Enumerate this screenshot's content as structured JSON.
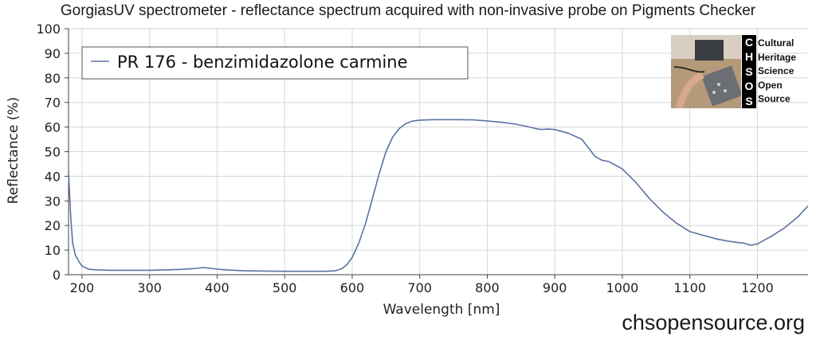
{
  "chart_data": {
    "type": "line",
    "title": "GorgiasUV spectrometer - reflectance spectrum acquired with non-invasive probe on Pigments Checker",
    "xlabel": "Wavelength [nm]",
    "ylabel": "Reflectance (%)",
    "xlim": [
      180,
      1275
    ],
    "ylim": [
      0,
      100
    ],
    "xticks": [
      200,
      300,
      400,
      500,
      600,
      700,
      800,
      900,
      1000,
      1100,
      1200
    ],
    "yticks": [
      0,
      10,
      20,
      30,
      40,
      50,
      60,
      70,
      80,
      90,
      100
    ],
    "grid": true,
    "legend_position": "top-left",
    "series": [
      {
        "name": "PR 176 - benzimidazolone carmine",
        "color": "#5a73a0",
        "x": [
          180,
          183,
          186,
          190,
          195,
          200,
          210,
          220,
          240,
          270,
          300,
          330,
          350,
          370,
          380,
          390,
          410,
          440,
          470,
          500,
          530,
          560,
          575,
          585,
          592,
          600,
          610,
          620,
          630,
          640,
          650,
          660,
          670,
          680,
          690,
          700,
          720,
          740,
          760,
          780,
          800,
          820,
          840,
          860,
          870,
          880,
          890,
          900,
          920,
          940,
          950,
          960,
          970,
          980,
          990,
          1000,
          1020,
          1040,
          1060,
          1080,
          1100,
          1120,
          1140,
          1160,
          1180,
          1190,
          1200,
          1210,
          1220,
          1240,
          1260,
          1275
        ],
        "y": [
          42,
          25,
          13,
          8,
          5.5,
          3.5,
          2.2,
          2.0,
          1.8,
          1.8,
          1.8,
          2.0,
          2.2,
          2.6,
          2.9,
          2.6,
          2.0,
          1.6,
          1.5,
          1.4,
          1.4,
          1.4,
          1.6,
          2.5,
          4.0,
          7.0,
          13,
          21,
          31,
          41,
          50,
          56,
          59.5,
          61.5,
          62.5,
          62.8,
          63.0,
          63.0,
          63.0,
          62.9,
          62.5,
          62.0,
          61.3,
          60.2,
          59.5,
          59.0,
          59.2,
          59.0,
          57.5,
          55.0,
          51.5,
          48.0,
          46.5,
          46.0,
          44.5,
          43.0,
          37.5,
          31.0,
          25.5,
          21.0,
          17.5,
          16.0,
          14.5,
          13.5,
          12.8,
          12.0,
          12.5,
          14.0,
          15.5,
          19.0,
          23.5,
          28.0
        ]
      }
    ]
  },
  "logo": {
    "letters": [
      "C",
      "H",
      "S",
      "O",
      "S"
    ],
    "words": [
      "Cultural",
      "Heritage",
      "Science",
      "Open",
      "Source"
    ]
  },
  "watermark": "chsopensource.org"
}
